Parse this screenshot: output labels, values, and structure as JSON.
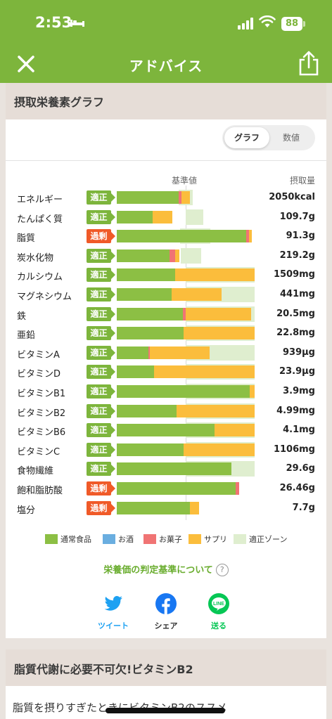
{
  "status_bar": {
    "time": "2:53",
    "battery": "88"
  },
  "header": {
    "title": "アドバイス"
  },
  "section1": {
    "title": "摂取栄養素グラフ"
  },
  "view_toggle": {
    "graph": "グラフ",
    "numeric": "数値"
  },
  "columns": {
    "baseline": "基準値",
    "intake": "摂取量"
  },
  "colors": {
    "normal_food": "#8cbf44",
    "alcohol": "#6aaee0",
    "snacks": "#f07474",
    "supplement": "#fbbd3c",
    "zone": "#dfeecf",
    "badge_ok": "#7db53c",
    "badge_over": "#f05a28"
  },
  "chart_data": {
    "type": "bar",
    "stacked": true,
    "orientation": "horizontal",
    "scale_note_unit": "% of standard (基準値 = 100)",
    "xlim": [
      0,
      200
    ],
    "series": [
      {
        "name": "通常食品",
        "key": "normal_food"
      },
      {
        "name": "お酒",
        "key": "alcohol"
      },
      {
        "name": "お菓子",
        "key": "snacks"
      },
      {
        "name": "サプリ",
        "key": "supplement"
      }
    ],
    "rows": [
      {
        "name": "エネルギー",
        "status": "適正",
        "over": false,
        "intake": "2050kcal",
        "zone": [
          90,
          110
        ],
        "normal_food": 90,
        "alcohol": 0,
        "snacks": 4,
        "supplement": 12
      },
      {
        "name": "たんぱく質",
        "status": "適正",
        "over": false,
        "intake": "109.7g",
        "zone": [
          100,
          125
        ],
        "normal_food": 52,
        "alcohol": 0,
        "snacks": 0,
        "supplement": 29
      },
      {
        "name": "脂質",
        "status": "過剰",
        "over": true,
        "intake": "91.3g",
        "zone": [
          92,
          136
        ],
        "normal_food": 188,
        "alcohol": 0,
        "snacks": 4,
        "supplement": 4
      },
      {
        "name": "炭水化物",
        "status": "適正",
        "over": false,
        "intake": "219.2g",
        "zone": [
          93,
          122
        ],
        "normal_food": 77,
        "alcohol": 0,
        "snacks": 8,
        "supplement": 6
      },
      {
        "name": "カルシウム",
        "status": "適正",
        "over": false,
        "intake": "1509mg",
        "zone": [
          100,
          200
        ],
        "normal_food": 85,
        "alcohol": 0,
        "snacks": 0,
        "supplement": 115
      },
      {
        "name": "マグネシウム",
        "status": "適正",
        "over": false,
        "intake": "441mg",
        "zone": [
          100,
          200
        ],
        "normal_food": 80,
        "alcohol": 0,
        "snacks": 0,
        "supplement": 72
      },
      {
        "name": "鉄",
        "status": "適正",
        "over": false,
        "intake": "20.5mg",
        "zone": [
          100,
          200
        ],
        "normal_food": 96,
        "alcohol": 0,
        "snacks": 4,
        "supplement": 95
      },
      {
        "name": "亜鉛",
        "status": "適正",
        "over": false,
        "intake": "22.8mg",
        "zone": [
          100,
          200
        ],
        "normal_food": 97,
        "alcohol": 0,
        "snacks": 0,
        "supplement": 103
      },
      {
        "name": "ビタミンA",
        "status": "適正",
        "over": false,
        "intake": "939µg",
        "zone": [
          100,
          200
        ],
        "normal_food": 46,
        "alcohol": 0,
        "snacks": 2,
        "supplement": 87
      },
      {
        "name": "ビタミンD",
        "status": "適正",
        "over": false,
        "intake": "23.9µg",
        "zone": [
          100,
          200
        ],
        "normal_food": 54,
        "alcohol": 0,
        "snacks": 0,
        "supplement": 146
      },
      {
        "name": "ビタミンB1",
        "status": "適正",
        "over": false,
        "intake": "3.9mg",
        "zone": [
          100,
          200
        ],
        "normal_food": 193,
        "alcohol": 0,
        "snacks": 0,
        "supplement": 7
      },
      {
        "name": "ビタミンB2",
        "status": "適正",
        "over": false,
        "intake": "4.99mg",
        "zone": [
          100,
          200
        ],
        "normal_food": 87,
        "alcohol": 0,
        "snacks": 0,
        "supplement": 113
      },
      {
        "name": "ビタミンB6",
        "status": "適正",
        "over": false,
        "intake": "4.1mg",
        "zone": [
          100,
          200
        ],
        "normal_food": 142,
        "alcohol": 0,
        "snacks": 0,
        "supplement": 58
      },
      {
        "name": "ビタミンC",
        "status": "適正",
        "over": false,
        "intake": "1106mg",
        "zone": [
          100,
          200
        ],
        "normal_food": 97,
        "alcohol": 0,
        "snacks": 0,
        "supplement": 103
      },
      {
        "name": "食物繊維",
        "status": "適正",
        "over": false,
        "intake": "29.6g",
        "zone": [
          100,
          200
        ],
        "normal_food": 166,
        "alcohol": 0,
        "snacks": 0,
        "supplement": 0
      },
      {
        "name": "飽和脂肪酸",
        "status": "過剰",
        "over": true,
        "intake": "26.46g",
        "zone": [
          0,
          0
        ],
        "normal_food": 172,
        "alcohol": 0,
        "snacks": 6,
        "supplement": 0
      },
      {
        "name": "塩分",
        "status": "過剰",
        "over": true,
        "intake": "7.7g",
        "zone": [
          0,
          0
        ],
        "normal_food": 106,
        "alcohol": 0,
        "snacks": 0,
        "supplement": 13
      }
    ]
  },
  "legend": [
    {
      "label": "通常食品",
      "key": "normal_food"
    },
    {
      "label": "お酒",
      "key": "alcohol"
    },
    {
      "label": "お菓子",
      "key": "snacks"
    },
    {
      "label": "サプリ",
      "key": "supplement"
    },
    {
      "label": "適正ゾーン",
      "key": "zone"
    }
  ],
  "criteria_link": "栄養価の判定基準について",
  "share": {
    "twitter": "ツイート",
    "facebook": "シェア",
    "line": "送る"
  },
  "section2": {
    "title": "脂質代謝に必要不可欠!ビタミンB2",
    "body": "脂質を摂りすぎたときにビタミンB2のススメ"
  }
}
